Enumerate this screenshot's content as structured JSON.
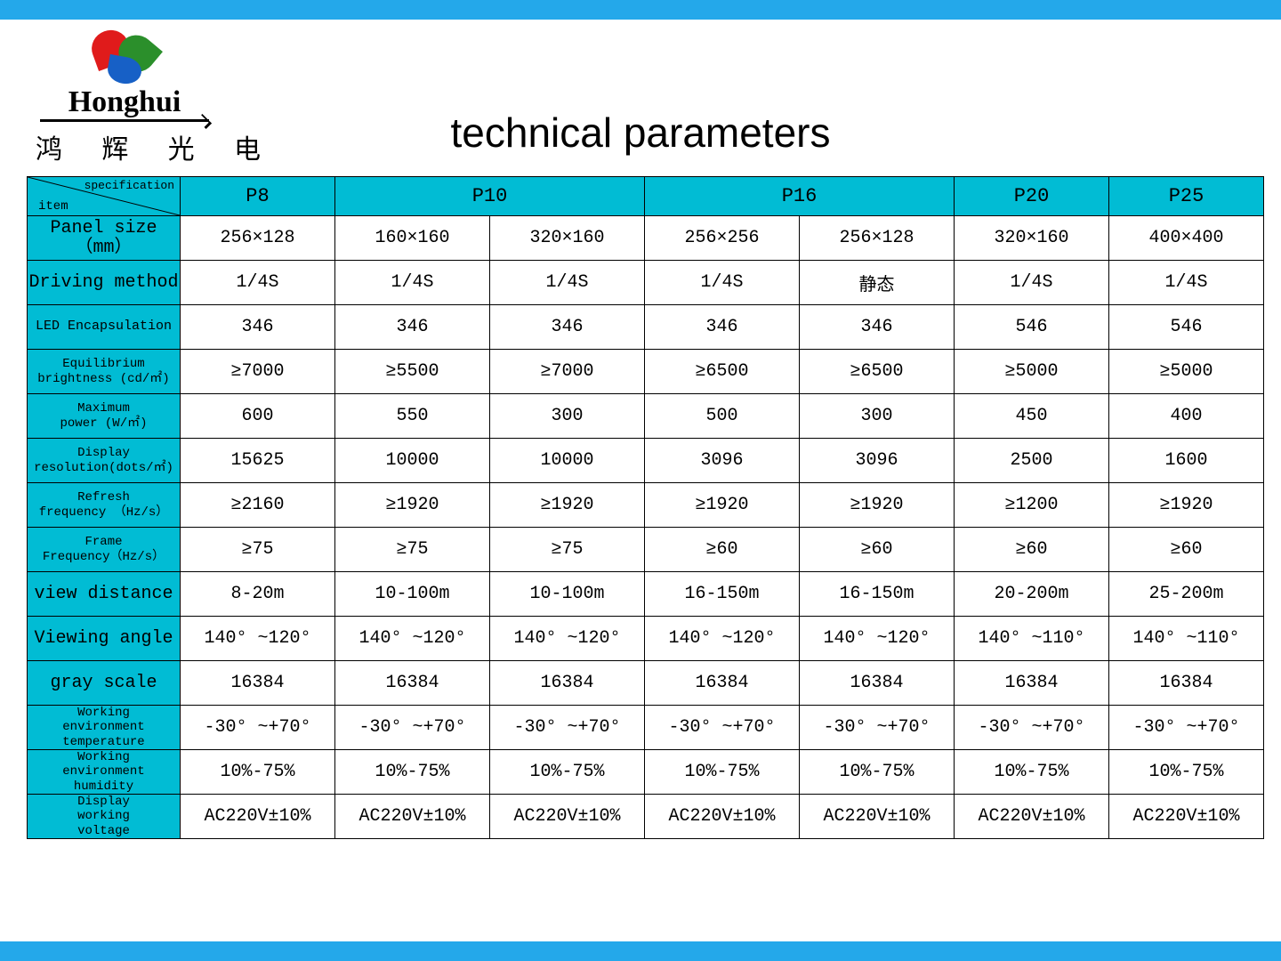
{
  "colors": {
    "topbar": "#24a8ea",
    "header_cell": "#01bcd4",
    "cell_bg": "#ffffff",
    "border": "#000000",
    "text": "#000000"
  },
  "logo": {
    "english": "Honghui",
    "chinese": "鸿 辉 光 电"
  },
  "title": "technical parameters",
  "corner": {
    "spec": "specification",
    "item": "item"
  },
  "columns": [
    {
      "label": "P8",
      "span": 1
    },
    {
      "label": "P10",
      "span": 2
    },
    {
      "label": "P16",
      "span": 2
    },
    {
      "label": "P20",
      "span": 1
    },
    {
      "label": "P25",
      "span": 1
    }
  ],
  "rows": [
    {
      "label": "Panel size（mm）",
      "size": "normal",
      "cells": [
        "256×128",
        "160×160",
        "320×160",
        "256×256",
        "256×128",
        "320×160",
        "400×400"
      ]
    },
    {
      "label": "Driving method",
      "size": "normal",
      "cells": [
        "1/4S",
        "1/4S",
        "1/4S",
        "1/4S",
        "静态",
        "1/4S",
        "1/4S"
      ]
    },
    {
      "label": "LED Encapsulation",
      "size": "small",
      "cells": [
        "346",
        "346",
        "346",
        "346",
        "346",
        "546",
        "546"
      ]
    },
    {
      "label": "Equilibrium\nbrightness (cd/㎡)",
      "size": "xsmall",
      "cells": [
        "≥7000",
        "≥5500",
        "≥7000",
        "≥6500",
        "≥6500",
        "≥5000",
        "≥5000"
      ]
    },
    {
      "label": "Maximum\npower   (W/㎡)",
      "size": "xsmall",
      "cells": [
        "600",
        "550",
        "300",
        "500",
        "300",
        "450",
        "400"
      ]
    },
    {
      "label": "Display\nresolution(dots/㎡)",
      "size": "xsmall",
      "cells": [
        "15625",
        "10000",
        "10000",
        "3096",
        "3096",
        "2500",
        "1600"
      ]
    },
    {
      "label": "Refresh\nfrequency （Hz/s）",
      "size": "xsmall",
      "cells": [
        "≥2160",
        "≥1920",
        "≥1920",
        "≥1920",
        "≥1920",
        "≥1200",
        "≥1920"
      ]
    },
    {
      "label": "Frame\nFrequency（Hz/s）",
      "size": "xsmall",
      "cells": [
        "≥75",
        "≥75",
        "≥75",
        "≥60",
        "≥60",
        "≥60",
        "≥60"
      ]
    },
    {
      "label": "view distance",
      "size": "normal",
      "cells": [
        "8-20m",
        "10-100m",
        "10-100m",
        "16-150m",
        "16-150m",
        "20-200m",
        "25-200m"
      ]
    },
    {
      "label": "Viewing angle",
      "size": "normal",
      "cells": [
        "140° ~120°",
        "140° ~120°",
        "140° ~120°",
        "140° ~120°",
        "140° ~120°",
        "140° ~110°",
        "140° ~110°"
      ]
    },
    {
      "label": "gray scale",
      "size": "normal",
      "cells": [
        "16384",
        "16384",
        "16384",
        "16384",
        "16384",
        "16384",
        "16384"
      ]
    },
    {
      "label": "Working\nenvironment\ntemperature",
      "size": "xsmall",
      "cells": [
        "-30° ~+70°",
        "-30° ~+70°",
        "-30° ~+70°",
        "-30° ~+70°",
        "-30° ~+70°",
        "-30° ~+70°",
        "-30° ~+70°"
      ]
    },
    {
      "label": "Working\nenvironment\nhumidity",
      "size": "xsmall",
      "cells": [
        "10%-75%",
        "10%-75%",
        "10%-75%",
        "10%-75%",
        "10%-75%",
        "10%-75%",
        "10%-75%"
      ]
    },
    {
      "label": "Display\nworking\nvoltage",
      "size": "xsmall",
      "cells": [
        "AC220V±10%",
        "AC220V±10%",
        "AC220V±10%",
        "AC220V±10%",
        "AC220V±10%",
        "AC220V±10%",
        "AC220V±10%"
      ]
    }
  ]
}
